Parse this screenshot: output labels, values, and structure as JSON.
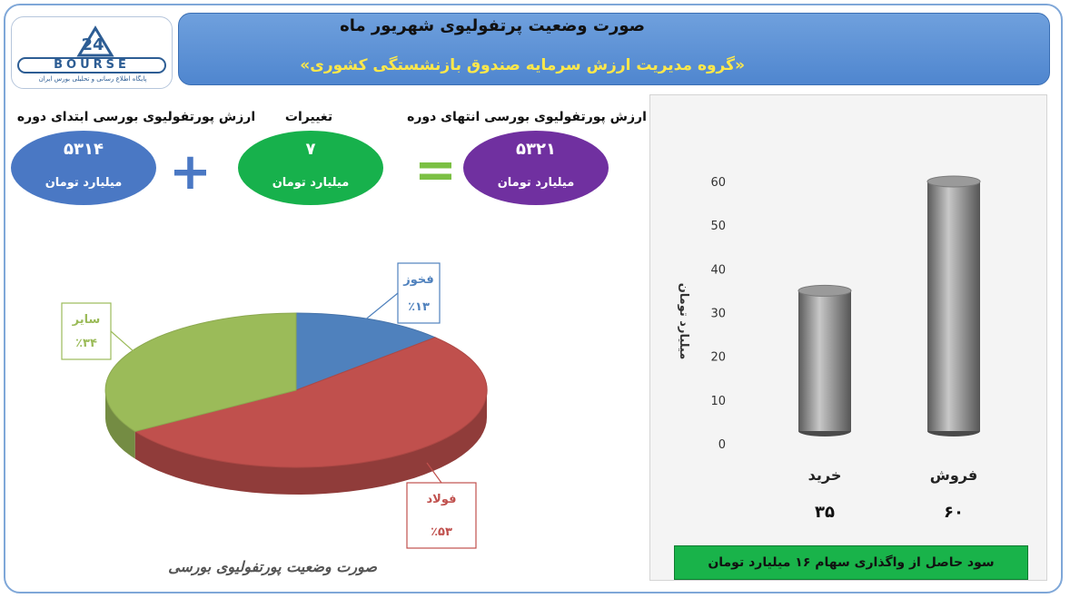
{
  "header": {
    "title": "صورت وضعیت پرتفولیوی شهریور ماه",
    "subtitle": "«گروه مدیریت ارزش سرمایه صندوق بازنشستگی کشوری»"
  },
  "logo": {
    "word": "BOURSE",
    "number": "24",
    "tagline": "پایگاه اطلاع رسانی و تحلیلی بورس ایران"
  },
  "summary": {
    "start": {
      "caption": "ارزش پورتفولیوی بورسی ابتدای دوره",
      "value": "۵۳۱۴",
      "unit": "میلیارد تومان",
      "color": "#4a78c4"
    },
    "change": {
      "caption": "تغییرات",
      "value": "۷",
      "unit": "میلیارد تومان",
      "color": "#17b14c"
    },
    "end": {
      "caption": "ارزش پورتفولیوی بورسی انتهای دوره",
      "value": "۵۳۲۱",
      "unit": "میلیارد تومان",
      "color": "#7030a0"
    },
    "plus_sign": "+",
    "equals_sign": "="
  },
  "pie_caption": "صورت وضعیت پورتفولیوی بورسی",
  "bar_footer": "سود حاصل از واگذاری سهام ۱۶ میلیارد تومان",
  "chart_data": [
    {
      "type": "pie",
      "title": "صورت وضعیت پورتفولیوی بورسی",
      "slices": [
        {
          "label": "فخوز",
          "value": 13,
          "value_label": "٪۱۳",
          "color": "#4f81bd"
        },
        {
          "label": "فولاد",
          "value": 53,
          "value_label": "٪۵۳",
          "color": "#c0504d"
        },
        {
          "label": "سایر",
          "value": 34,
          "value_label": "٪۳۴",
          "color": "#9bbb59"
        }
      ]
    },
    {
      "type": "bar",
      "categories": [
        "خرید",
        "فروش"
      ],
      "values": [
        35,
        60
      ],
      "value_labels": [
        "۳۵",
        "۶۰"
      ],
      "ylabel": "میلیارد تومان",
      "ylim": [
        0,
        60
      ],
      "yticks": [
        0,
        10,
        20,
        30,
        40,
        50,
        60
      ],
      "ytick_labels": [
        "0",
        "10",
        "20",
        "30",
        "40",
        "50",
        "60"
      ],
      "bar_color": "#8a8a8a",
      "grid": false
    }
  ]
}
